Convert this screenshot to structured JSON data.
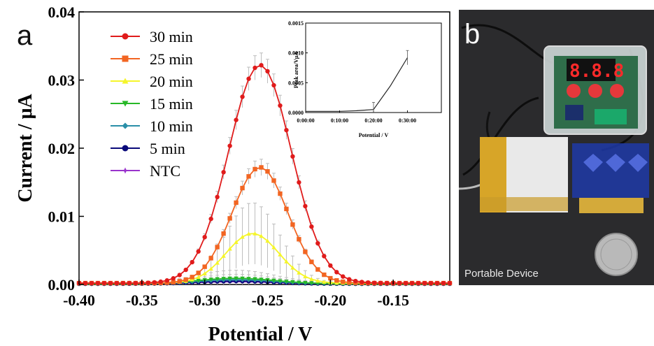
{
  "panel_a_label": "a",
  "panel_b_label": "b",
  "photo_caption": "Portable Device",
  "display_readout": "8.8.8",
  "colors": {
    "30 min": "#e01b1b",
    "25 min": "#f26522",
    "20 min": "#f5f52a",
    "15 min": "#27b827",
    "10 min": "#2a8fa8",
    "5 min": "#0a0a7a",
    "NTC": "#9933cc",
    "error_bar": "#bdbdbd"
  },
  "chart_data": [
    {
      "type": "line",
      "xlabel": "Potential / V",
      "ylabel": "Current / μA",
      "xlim": [
        -0.4,
        -0.105
      ],
      "ylim": [
        0,
        0.04
      ],
      "x_ticks": [
        -0.4,
        -0.35,
        -0.3,
        -0.25,
        -0.2,
        -0.15
      ],
      "x_tick_labels": [
        "-0.40",
        "-0.35",
        "-0.30",
        "-0.25",
        "-0.20",
        "-0.15"
      ],
      "y_ticks": [
        0.0,
        0.01,
        0.02,
        0.03,
        0.04
      ],
      "y_tick_labels": [
        "0.00",
        "0.01",
        "0.02",
        "0.03",
        "0.04"
      ],
      "legend_position": "top-left",
      "series": [
        {
          "name": "30 min",
          "marker": "circle",
          "peak_x": -0.256,
          "peak_y": 0.032,
          "width": 0.037,
          "error": 0.0018,
          "baseline": 0.0002
        },
        {
          "name": "25 min",
          "marker": "square",
          "peak_x": -0.256,
          "peak_y": 0.017,
          "width": 0.033,
          "error": 0.0012,
          "baseline": 0.0002
        },
        {
          "name": "20 min",
          "marker": "triangle-up",
          "peak_x": -0.262,
          "peak_y": 0.0073,
          "width": 0.031,
          "error": 0.0045,
          "baseline": 0.0002
        },
        {
          "name": "15 min",
          "marker": "triangle-down",
          "peak_x": -0.275,
          "peak_y": 0.0008,
          "width": 0.045,
          "error": 0.0012,
          "baseline": 0.0001
        },
        {
          "name": "10 min",
          "marker": "diamond",
          "peak_x": -0.275,
          "peak_y": 0.0006,
          "width": 0.045,
          "error": 0.0008,
          "baseline": 0.0001
        },
        {
          "name": "5 min",
          "marker": "circle",
          "peak_x": -0.275,
          "peak_y": 0.0004,
          "width": 0.045,
          "error": 0.0004,
          "baseline": 0.0001
        },
        {
          "name": "NTC",
          "marker": "star",
          "peak_x": -0.275,
          "peak_y": 0.0003,
          "width": 0.045,
          "error": 0.0003,
          "baseline": 0.0001
        }
      ]
    },
    {
      "type": "line",
      "inset": true,
      "xlabel": "Potential / V",
      "ylabel": "Peak area/VμA",
      "xlim": [
        0,
        40
      ],
      "ylim": [
        0,
        0.0015
      ],
      "x_ticks": [
        0,
        10,
        20,
        30
      ],
      "x_tick_labels": [
        "0:00:00",
        "0:10:00",
        "0:20:00",
        "0:30:00"
      ],
      "y_ticks": [
        0,
        0.0005,
        0.001,
        0.0015
      ],
      "y_tick_labels": [
        "0.0000",
        "0.0005",
        "0.0010",
        "0.0015"
      ],
      "series": [
        {
          "x": [
            0,
            5,
            10,
            15,
            20,
            25,
            30
          ],
          "y": [
            2e-05,
            2e-05,
            2e-05,
            3e-05,
            5e-05,
            0.00045,
            0.00092
          ],
          "errors": [
            0,
            0,
            0,
            0,
            0.00012,
            0,
            0.00012
          ]
        }
      ]
    }
  ]
}
